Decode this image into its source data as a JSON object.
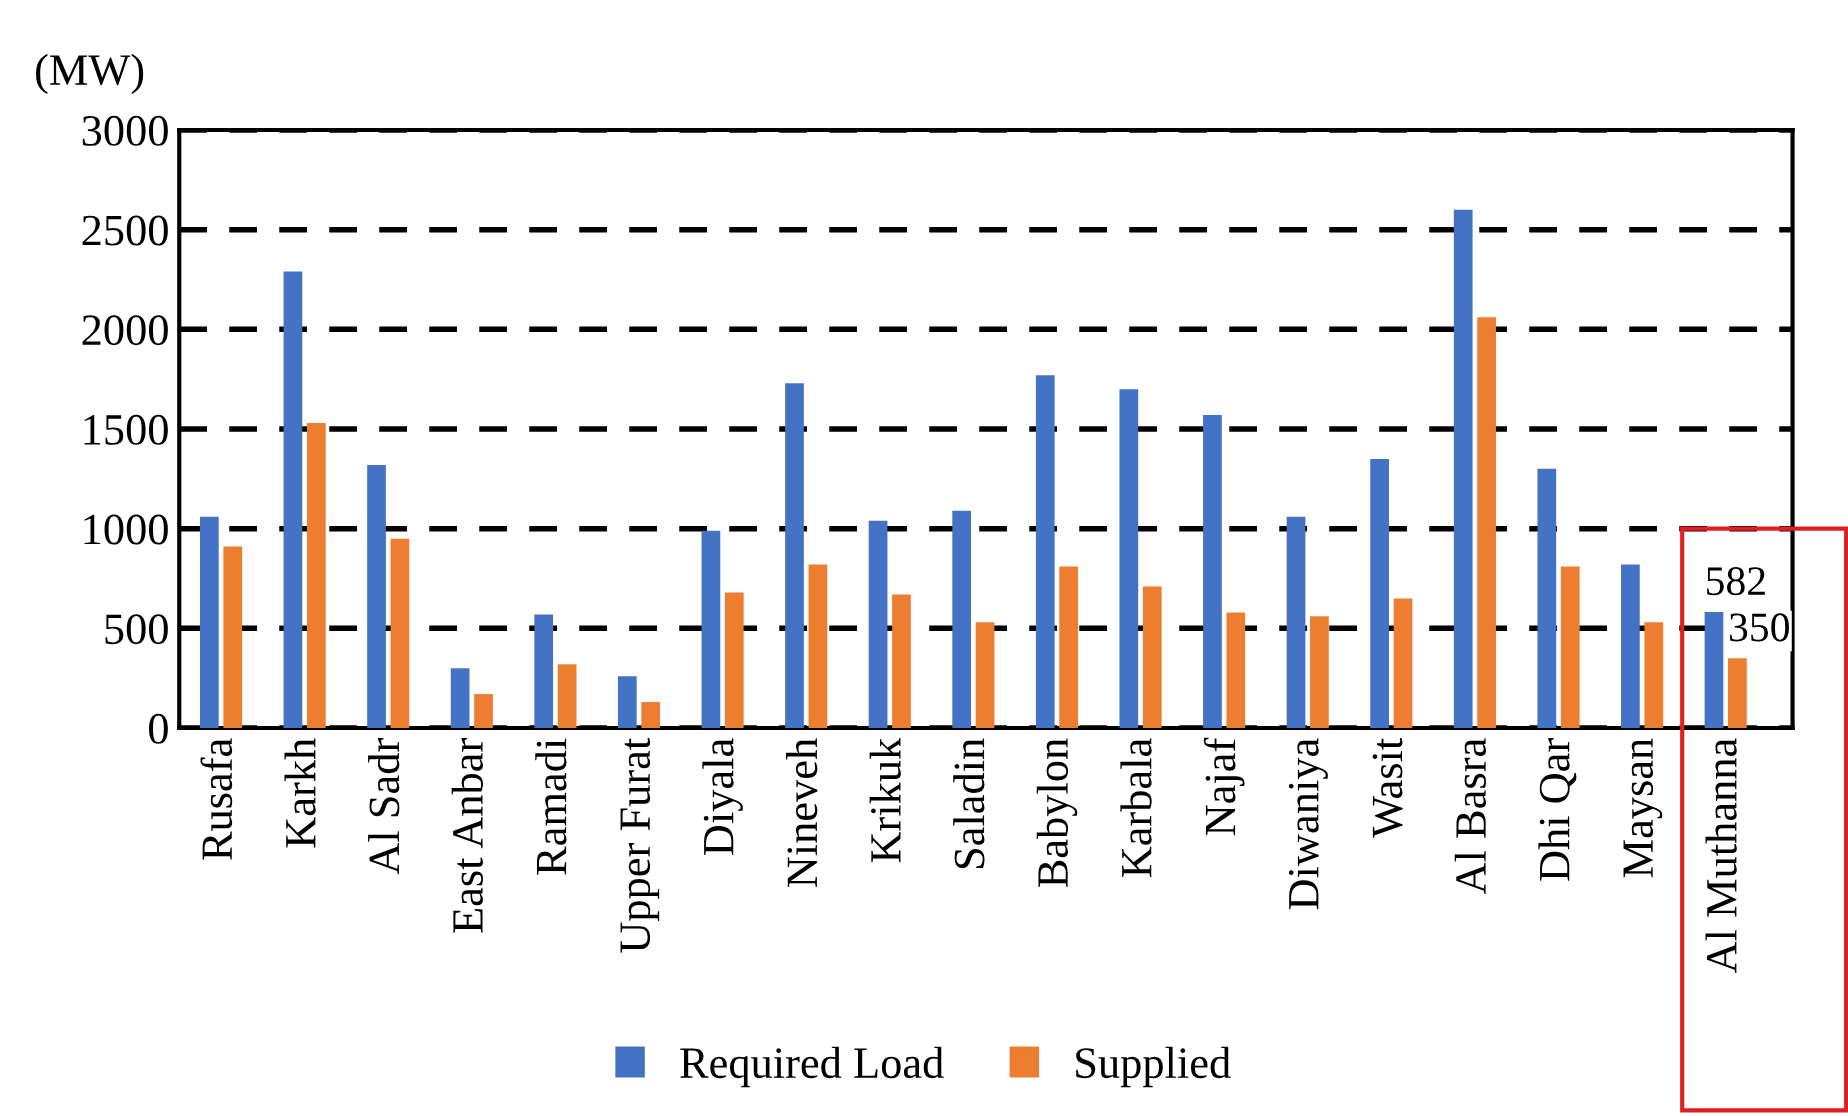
{
  "chart_data": {
    "type": "bar",
    "ylabel": "(MW)",
    "categories": [
      "Rusafa",
      "Karkh",
      "Al Sadr",
      "East Anbar",
      "Ramadi",
      "Upper Furat",
      "Diyala",
      "Nineveh",
      "Krikuk",
      "Saladin",
      "Babylon",
      "Karbala",
      "Najaf",
      "Diwaniya",
      "Wasit",
      "Al Basra",
      "Dhi Qar",
      "Maysan",
      "Al Muthanna"
    ],
    "series": [
      {
        "name": "Required Load",
        "color": "#4472c4",
        "values": [
          1060,
          2290,
          1320,
          300,
          570,
          260,
          990,
          1730,
          1040,
          1090,
          1770,
          1700,
          1570,
          1060,
          1350,
          2600,
          1300,
          820,
          582
        ],
        "value_labels": [
          null,
          null,
          null,
          null,
          null,
          null,
          null,
          null,
          null,
          null,
          null,
          null,
          null,
          null,
          null,
          null,
          null,
          null,
          "582"
        ]
      },
      {
        "name": "Supplied",
        "color": "#ed7d31",
        "values": [
          910,
          1530,
          950,
          170,
          320,
          130,
          680,
          820,
          670,
          530,
          810,
          710,
          580,
          560,
          650,
          2060,
          810,
          530,
          350
        ],
        "value_labels": [
          null,
          null,
          null,
          null,
          null,
          null,
          null,
          null,
          null,
          null,
          null,
          null,
          null,
          null,
          null,
          null,
          null,
          null,
          "350"
        ]
      }
    ],
    "ylim": [
      0,
      3000
    ],
    "yticks": [
      0,
      500,
      1000,
      1500,
      2000,
      2500,
      3000
    ],
    "grid": "y",
    "line_style": "dashed",
    "legend": "bottom"
  }
}
